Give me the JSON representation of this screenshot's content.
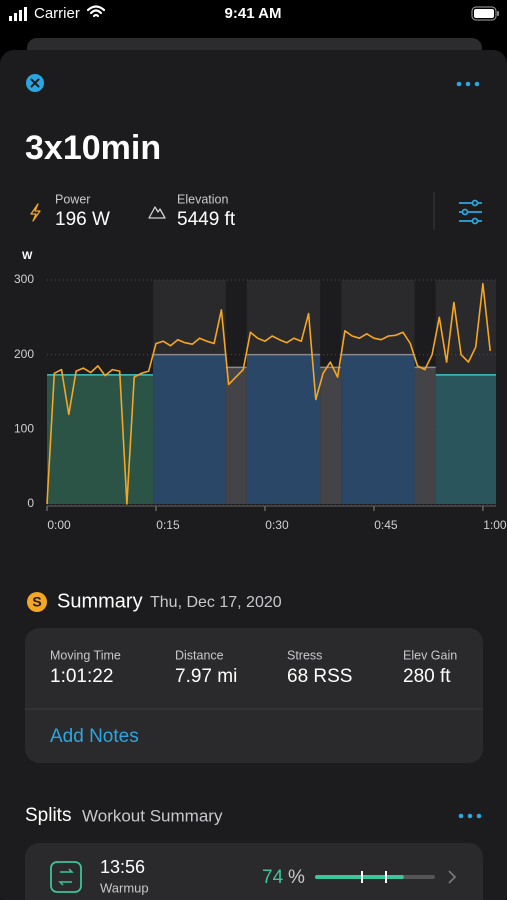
{
  "status_bar": {
    "carrier": "Carrier",
    "time": "9:41 AM"
  },
  "workout": {
    "title": "3x10min",
    "metrics": [
      {
        "label": "Power",
        "value": "196 W"
      },
      {
        "label": "Elevation",
        "value": "5449 ft"
      }
    ]
  },
  "chart_data": {
    "type": "line",
    "y_label": "W",
    "color": "#f5a623",
    "x": [
      0,
      1,
      2,
      3,
      4,
      5,
      6,
      7,
      8,
      9,
      10,
      11,
      12,
      13,
      14,
      15,
      16,
      17,
      18,
      19,
      20,
      21,
      22,
      23,
      24,
      25,
      26,
      27,
      28,
      29,
      30,
      31,
      32,
      33,
      34,
      35,
      36,
      37,
      38,
      39,
      40,
      41,
      42,
      43,
      44,
      45,
      46,
      47,
      48,
      49,
      50,
      51,
      52,
      53,
      54,
      55,
      56,
      57,
      58,
      59,
      60,
      61
    ],
    "values": [
      0,
      175,
      180,
      120,
      178,
      182,
      176,
      185,
      172,
      180,
      178,
      0,
      170,
      175,
      178,
      215,
      218,
      212,
      220,
      216,
      214,
      222,
      218,
      215,
      260,
      160,
      170,
      180,
      230,
      222,
      218,
      225,
      220,
      216,
      222,
      218,
      255,
      140,
      175,
      190,
      170,
      232,
      225,
      222,
      228,
      222,
      220,
      225,
      226,
      230,
      215,
      185,
      180,
      200,
      250,
      190,
      270,
      200,
      190,
      210,
      295,
      205
    ],
    "intervals": [
      {
        "start": 0,
        "end": 14.6,
        "target": 173,
        "color": "#2d5a4a",
        "line": "#3cc4c4",
        "shaded": false
      },
      {
        "start": 14.6,
        "end": 24.6,
        "target": 200,
        "color": "#2b4a6e",
        "line": "#8a8a8e",
        "shaded": true
      },
      {
        "start": 24.6,
        "end": 27.5,
        "target": 183,
        "color": "#48484c",
        "line": "#8a8a8e",
        "shaded": false
      },
      {
        "start": 27.5,
        "end": 37.6,
        "target": 200,
        "color": "#2b4a6e",
        "line": "#8a8a8e",
        "shaded": true
      },
      {
        "start": 37.6,
        "end": 40.5,
        "target": 183,
        "color": "#48484c",
        "line": "#8a8a8e",
        "shaded": false
      },
      {
        "start": 40.5,
        "end": 50.6,
        "target": 200,
        "color": "#2b4a6e",
        "line": "#8a8a8e",
        "shaded": true
      },
      {
        "start": 50.6,
        "end": 53.5,
        "target": 183,
        "color": "#48484c",
        "line": "#8a8a8e",
        "shaded": false
      },
      {
        "start": 53.5,
        "end": 61.8,
        "target": 173,
        "color": "#2a5a62",
        "line": "#3cc4c4",
        "shaded": true
      }
    ],
    "xlim": [
      0,
      61.8
    ],
    "xticks": [
      {
        "value": 0,
        "label": "0:00"
      },
      {
        "value": 15,
        "label": "0:15"
      },
      {
        "value": 30,
        "label": "0:30"
      },
      {
        "value": 45,
        "label": "0:45"
      },
      {
        "value": 60,
        "label": "1:00"
      }
    ],
    "ylim": [
      0,
      300
    ],
    "yticks": [
      0,
      100,
      200,
      300
    ],
    "grid": true
  },
  "summary": {
    "badge": "S",
    "title": "Summary",
    "date": "Thu, Dec 17, 2020",
    "stats": [
      {
        "label": "Moving Time",
        "value": "1:01:22"
      },
      {
        "label": "Distance",
        "value": "7.97 mi"
      },
      {
        "label": "Stress",
        "value": "68 RSS"
      },
      {
        "label": "Elev Gain",
        "value": "280 ft"
      }
    ],
    "add_notes": "Add Notes"
  },
  "splits": {
    "title": "Splits",
    "subtitle": "Workout Summary",
    "rows": [
      {
        "time": "13:56",
        "name": "Warmup",
        "percent": 74,
        "unit": "%"
      }
    ]
  }
}
